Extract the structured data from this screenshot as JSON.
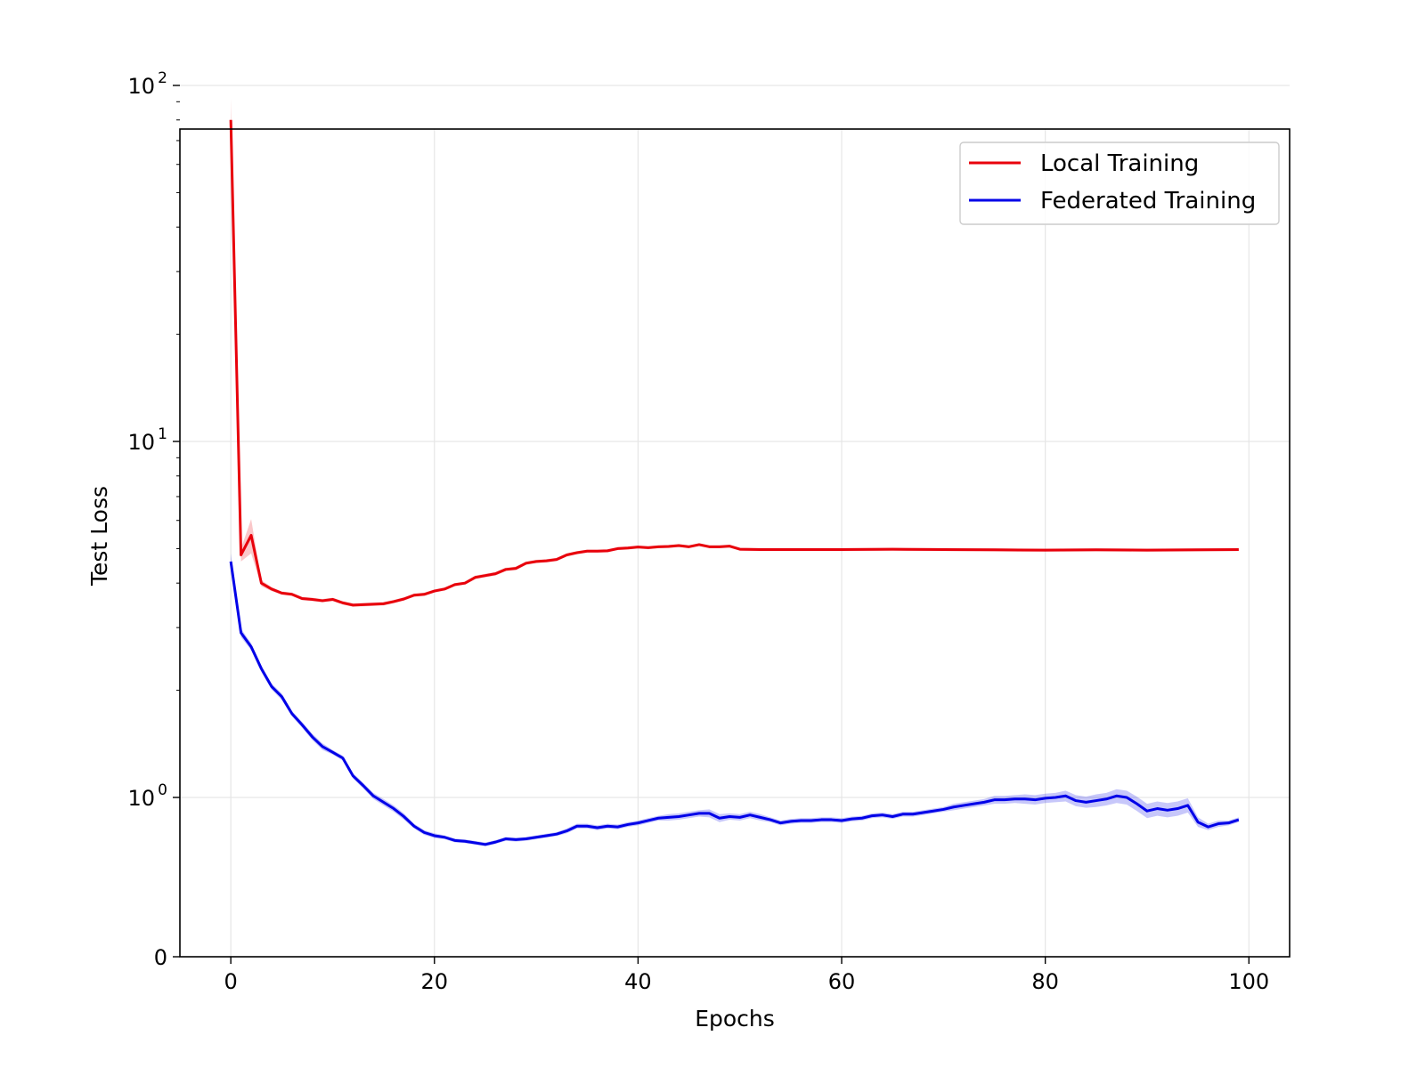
{
  "chart_data": {
    "type": "line",
    "title": "",
    "xlabel": "Epochs",
    "ylabel": "Test Loss",
    "yscale": "symlog",
    "xlim": [
      -5,
      104
    ],
    "x_ticks": [
      0,
      20,
      40,
      60,
      80,
      100
    ],
    "x_tick_labels": [
      "0",
      "20",
      "40",
      "60",
      "80",
      "100"
    ],
    "y_ticks": [
      0,
      1,
      10,
      100
    ],
    "y_tick_labels": [
      {
        "base": "0",
        "exp": ""
      },
      {
        "base": "10",
        "exp": "0"
      },
      {
        "base": "10",
        "exp": "1"
      },
      {
        "base": "10",
        "exp": "2"
      }
    ],
    "grid": true,
    "legend_position": "top-right",
    "series": [
      {
        "name": "Local Training",
        "color": "#e8000b",
        "x": [
          0,
          1,
          2,
          3,
          4,
          5,
          6,
          7,
          8,
          9,
          10,
          11,
          12,
          13,
          14,
          15,
          16,
          17,
          18,
          19,
          20,
          21,
          22,
          23,
          24,
          25,
          26,
          27,
          28,
          29,
          30,
          31,
          32,
          33,
          34,
          35,
          36,
          37,
          38,
          39,
          40,
          41,
          42,
          43,
          44,
          45,
          46,
          47,
          48,
          49,
          50,
          52,
          55,
          60,
          65,
          70,
          75,
          80,
          85,
          90,
          95,
          99
        ],
        "values": [
          80,
          4.8,
          5.45,
          4.0,
          3.85,
          3.75,
          3.72,
          3.62,
          3.6,
          3.57,
          3.6,
          3.52,
          3.47,
          3.48,
          3.49,
          3.5,
          3.55,
          3.61,
          3.7,
          3.72,
          3.8,
          3.85,
          3.96,
          4.0,
          4.15,
          4.2,
          4.25,
          4.37,
          4.4,
          4.55,
          4.6,
          4.62,
          4.66,
          4.8,
          4.87,
          4.92,
          4.92,
          4.93,
          5.0,
          5.02,
          5.05,
          5.03,
          5.06,
          5.07,
          5.1,
          5.06,
          5.13,
          5.06,
          5.06,
          5.08,
          4.98,
          4.97,
          4.97,
          4.97,
          4.98,
          4.97,
          4.96,
          4.95,
          4.96,
          4.95,
          4.96,
          4.97
        ],
        "band_halfwidth": [
          12,
          0.2,
          0.6,
          0.08,
          0.05,
          0.04,
          0.04,
          0.04,
          0.04,
          0.04,
          0.04,
          0.04,
          0.04,
          0.04,
          0.04,
          0.04,
          0.04,
          0.04,
          0.04,
          0.04,
          0.04,
          0.04,
          0.04,
          0.04,
          0.05,
          0.05,
          0.05,
          0.05,
          0.05,
          0.05,
          0.05,
          0.05,
          0.05,
          0.05,
          0.05,
          0.05,
          0.05,
          0.05,
          0.05,
          0.05,
          0.05,
          0.05,
          0.05,
          0.05,
          0.05,
          0.05,
          0.05,
          0.05,
          0.05,
          0.05,
          0.05,
          0.05,
          0.05,
          0.05,
          0.05,
          0.05,
          0.05,
          0.05,
          0.05,
          0.05,
          0.05,
          0.05
        ]
      },
      {
        "name": "Federated Training",
        "color": "#0000e8",
        "x": [
          0,
          1,
          2,
          3,
          4,
          5,
          6,
          7,
          8,
          9,
          10,
          11,
          12,
          13,
          14,
          15,
          16,
          17,
          18,
          19,
          20,
          21,
          22,
          23,
          24,
          25,
          26,
          27,
          28,
          29,
          30,
          31,
          32,
          33,
          34,
          35,
          36,
          37,
          38,
          39,
          40,
          41,
          42,
          43,
          44,
          45,
          46,
          47,
          48,
          49,
          50,
          51,
          52,
          53,
          54,
          55,
          56,
          57,
          58,
          59,
          60,
          61,
          62,
          63,
          64,
          65,
          66,
          67,
          68,
          69,
          70,
          71,
          72,
          73,
          74,
          75,
          76,
          77,
          78,
          79,
          80,
          81,
          82,
          83,
          84,
          85,
          86,
          87,
          88,
          89,
          90,
          91,
          92,
          93,
          94,
          95,
          96,
          97,
          98,
          99
        ],
        "values": [
          4.6,
          2.9,
          2.65,
          2.3,
          2.05,
          1.92,
          1.72,
          1.6,
          1.48,
          1.39,
          1.34,
          1.29,
          1.15,
          1.08,
          1.01,
          0.97,
          0.93,
          0.88,
          0.82,
          0.78,
          0.76,
          0.75,
          0.73,
          0.725,
          0.715,
          0.705,
          0.72,
          0.74,
          0.735,
          0.74,
          0.75,
          0.76,
          0.77,
          0.79,
          0.82,
          0.82,
          0.81,
          0.82,
          0.815,
          0.83,
          0.84,
          0.855,
          0.87,
          0.875,
          0.88,
          0.89,
          0.9,
          0.9,
          0.87,
          0.88,
          0.875,
          0.89,
          0.875,
          0.86,
          0.84,
          0.85,
          0.855,
          0.855,
          0.86,
          0.86,
          0.855,
          0.865,
          0.87,
          0.885,
          0.89,
          0.88,
          0.895,
          0.895,
          0.905,
          0.915,
          0.925,
          0.94,
          0.95,
          0.96,
          0.97,
          0.985,
          0.985,
          0.99,
          0.99,
          0.985,
          0.995,
          1.0,
          1.01,
          0.98,
          0.97,
          0.98,
          0.99,
          1.01,
          1.0,
          0.96,
          0.915,
          0.93,
          0.92,
          0.93,
          0.95,
          0.845,
          0.815,
          0.835,
          0.84,
          0.86
        ],
        "band_halfwidth": [
          0.25,
          0.08,
          0.06,
          0.05,
          0.04,
          0.04,
          0.03,
          0.03,
          0.03,
          0.03,
          0.02,
          0.02,
          0.02,
          0.02,
          0.02,
          0.02,
          0.02,
          0.02,
          0.015,
          0.015,
          0.015,
          0.012,
          0.012,
          0.012,
          0.012,
          0.012,
          0.012,
          0.012,
          0.012,
          0.012,
          0.012,
          0.012,
          0.012,
          0.015,
          0.015,
          0.015,
          0.015,
          0.015,
          0.015,
          0.015,
          0.015,
          0.015,
          0.015,
          0.02,
          0.02,
          0.02,
          0.02,
          0.025,
          0.025,
          0.02,
          0.02,
          0.02,
          0.02,
          0.015,
          0.015,
          0.015,
          0.015,
          0.015,
          0.015,
          0.015,
          0.015,
          0.015,
          0.015,
          0.015,
          0.015,
          0.015,
          0.015,
          0.015,
          0.015,
          0.015,
          0.015,
          0.02,
          0.02,
          0.02,
          0.02,
          0.025,
          0.025,
          0.025,
          0.03,
          0.03,
          0.03,
          0.03,
          0.035,
          0.035,
          0.035,
          0.04,
          0.04,
          0.045,
          0.045,
          0.045,
          0.045,
          0.045,
          0.045,
          0.045,
          0.045,
          0.03,
          0.02,
          0.02,
          0.015,
          0.015
        ]
      }
    ]
  }
}
